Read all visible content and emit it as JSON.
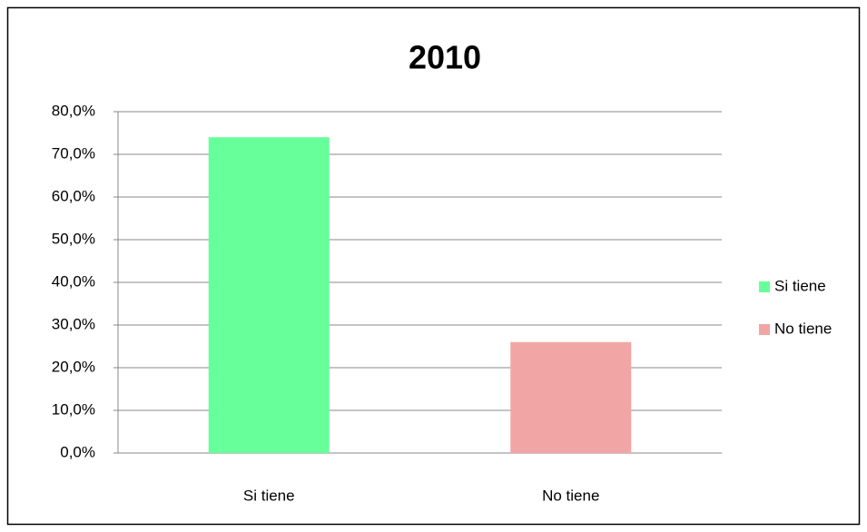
{
  "chart_data": {
    "type": "bar",
    "title": "2010",
    "categories": [
      "Si tiene",
      "No tiene"
    ],
    "values": [
      74.0,
      26.0
    ],
    "colors": [
      "#66ff99",
      "#f2a5a5"
    ],
    "ylim": [
      0,
      80
    ],
    "yticks": [
      {
        "value": 0,
        "label": "0,0%"
      },
      {
        "value": 10,
        "label": "10,0%"
      },
      {
        "value": 20,
        "label": "20,0%"
      },
      {
        "value": 30,
        "label": "30,0%"
      },
      {
        "value": 40,
        "label": "40,0%"
      },
      {
        "value": 50,
        "label": "50,0%"
      },
      {
        "value": 60,
        "label": "60,0%"
      },
      {
        "value": 70,
        "label": "70,0%"
      },
      {
        "value": 80,
        "label": "80,0%"
      }
    ],
    "grid": true,
    "legend": "right"
  }
}
